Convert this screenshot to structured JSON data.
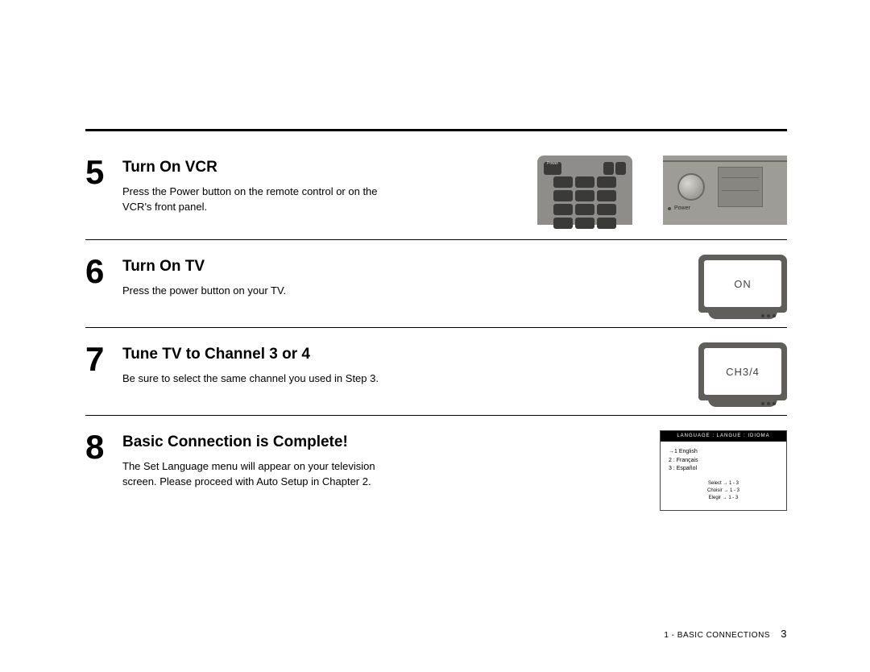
{
  "colors": {
    "text": "#000000",
    "background": "#ffffff",
    "device_gray": "#8e8d89",
    "device_dark": "#3a3a38",
    "tv_body": "#5f5e5a",
    "panel_gray": "#9e9c97"
  },
  "steps": [
    {
      "num": "5",
      "title": "Turn On VCR",
      "body": "Press the Power button on the remote control or on the VCR's front panel.",
      "figure": "remote_and_panel",
      "panel_power_label": "Power"
    },
    {
      "num": "6",
      "title": "Turn On TV",
      "body": "Press the power button on your TV.",
      "figure": "tv",
      "tv_text": "ON"
    },
    {
      "num": "7",
      "title": "Tune TV to Channel 3 or 4",
      "body": "Be sure to select the same channel you used in Step 3.",
      "figure": "tv",
      "tv_text": "CH3/4"
    },
    {
      "num": "8",
      "title": "Basic Connection is Complete!",
      "body": "The Set Language menu will appear on your television screen. Please proceed with Auto Setup in Chapter 2.",
      "figure": "lang_menu"
    }
  ],
  "lang_menu": {
    "header": "LANGUAGE : LANGUE : IDIOMA",
    "item1": "1    English",
    "item2": "2 : Français",
    "item3": "3 : Español",
    "foot1": "Select → 1 - 3",
    "foot2": "Choisir → 1 - 3",
    "foot3": "Elegir → 1 - 3"
  },
  "footer": {
    "section": "1 - BASIC CONNECTIONS",
    "page": "3"
  },
  "remote_power_label": "Power"
}
